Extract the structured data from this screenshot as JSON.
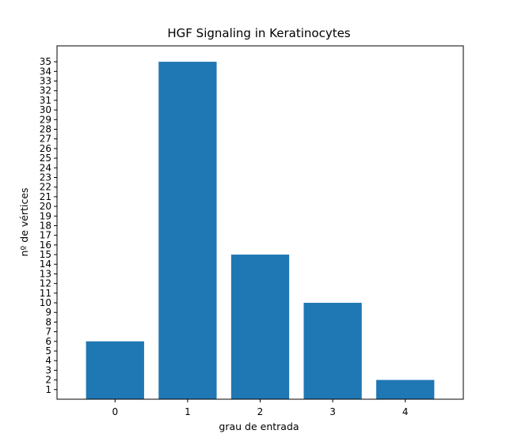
{
  "chart_data": {
    "type": "bar",
    "title": "HGF Signaling in Keratinocytes",
    "xlabel": "grau de entrada",
    "ylabel": "nº de vértices",
    "categories": [
      "0",
      "1",
      "2",
      "3",
      "4"
    ],
    "values": [
      6,
      35,
      15,
      10,
      2
    ],
    "yticks": [
      1,
      2,
      3,
      4,
      5,
      6,
      7,
      8,
      9,
      10,
      11,
      12,
      13,
      14,
      15,
      16,
      17,
      18,
      19,
      20,
      21,
      22,
      23,
      24,
      25,
      26,
      27,
      28,
      29,
      30,
      31,
      32,
      33,
      34,
      35
    ],
    "ylim": [
      0,
      36.65
    ],
    "bar_color": "#1f77b4",
    "grid": false,
    "legend": "none"
  }
}
